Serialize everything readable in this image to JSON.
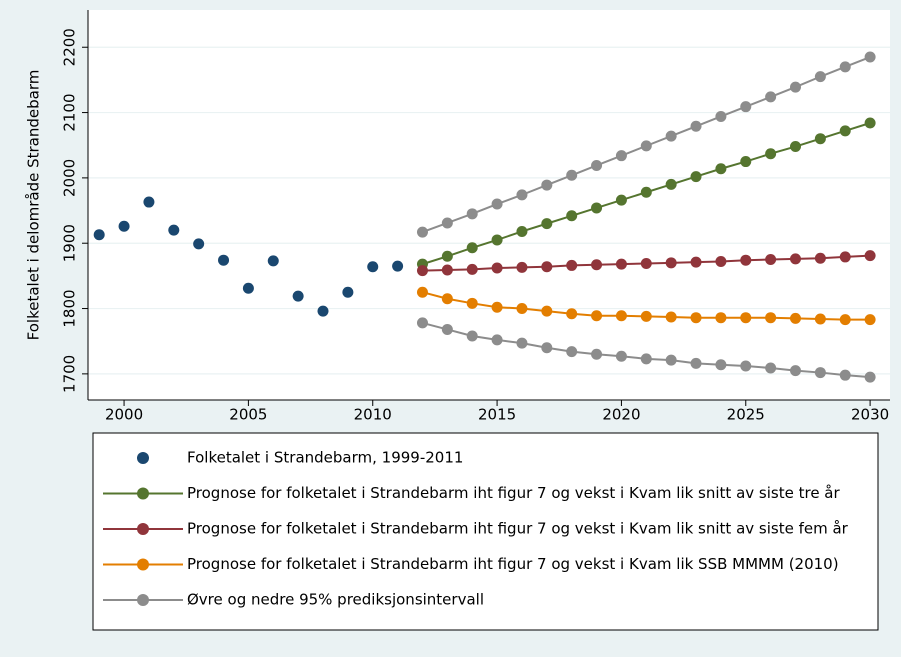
{
  "chart_data": {
    "type": "line",
    "y_label": "Folketalet i delområde Strandebarm",
    "xlim": [
      1998.55,
      2030.8
    ],
    "xticks": [
      2000,
      2005,
      2010,
      2015,
      2020,
      2025,
      2030
    ],
    "ylim": [
      1660,
      2257
    ],
    "yticks": [
      1700,
      1800,
      1900,
      2000,
      2100,
      2200
    ],
    "grid": true,
    "series": [
      {
        "name": "Folketalet i Strandebarm, 1999-2011",
        "color": "#1a476f",
        "style": "markers",
        "x": [
          1999,
          2000,
          2001,
          2002,
          2003,
          2004,
          2005,
          2006,
          2007,
          2008,
          2009,
          2010,
          2011
        ],
        "values": [
          1913,
          1926,
          1963,
          1920,
          1899,
          1874,
          1831,
          1873,
          1819,
          1796,
          1825,
          1864,
          1865
        ]
      },
      {
        "name": "Prognose for folketalet i Strandebarm iht figur 7 og vekst i Kvam lik snitt av siste tre år",
        "color": "#55752f",
        "style": "line-markers",
        "x": [
          2012,
          2013,
          2014,
          2015,
          2016,
          2017,
          2018,
          2019,
          2020,
          2021,
          2022,
          2023,
          2024,
          2025,
          2026,
          2027,
          2028,
          2029,
          2030
        ],
        "values": [
          1868,
          1880,
          1893,
          1905,
          1918,
          1930,
          1942,
          1954,
          1966,
          1978,
          1990,
          2002,
          2014,
          2025,
          2037,
          2048,
          2060,
          2072,
          2084
        ]
      },
      {
        "name": "Prognose for folketalet i Strandebarm iht figur 7 og vekst i Kvam lik snitt av siste fem år",
        "color": "#90353b",
        "style": "line-markers",
        "x": [
          2012,
          2013,
          2014,
          2015,
          2016,
          2017,
          2018,
          2019,
          2020,
          2021,
          2022,
          2023,
          2024,
          2025,
          2026,
          2027,
          2028,
          2029,
          2030
        ],
        "values": [
          1858,
          1859,
          1860,
          1862,
          1863,
          1864,
          1866,
          1867,
          1868,
          1869,
          1870,
          1871,
          1872,
          1874,
          1875,
          1876,
          1877,
          1879,
          1881
        ]
      },
      {
        "name": "Prognose for folketalet i Strandebarm iht figur 7 og vekst i Kvam lik SSB MMMM (2010)",
        "color": "#e37e00",
        "style": "line-markers",
        "x": [
          2012,
          2013,
          2014,
          2015,
          2016,
          2017,
          2018,
          2019,
          2020,
          2021,
          2022,
          2023,
          2024,
          2025,
          2026,
          2027,
          2028,
          2029,
          2030
        ],
        "values": [
          1825,
          1815,
          1808,
          1802,
          1800,
          1796,
          1792,
          1789,
          1789,
          1788,
          1787,
          1786,
          1786,
          1786,
          1786,
          1785,
          1784,
          1783,
          1783
        ]
      },
      {
        "name": "Øvre og nedre 95% prediksjonsintervall",
        "color": "#8c8c8c",
        "style": "line-markers",
        "x": [
          2012,
          2013,
          2014,
          2015,
          2016,
          2017,
          2018,
          2019,
          2020,
          2021,
          2022,
          2023,
          2024,
          2025,
          2026,
          2027,
          2028,
          2029,
          2030
        ],
        "upper": [
          1917,
          1931,
          1945,
          1960,
          1974,
          1989,
          2004,
          2019,
          2034,
          2049,
          2064,
          2079,
          2094,
          2109,
          2124,
          2139,
          2155,
          2170,
          2185
        ],
        "lower": [
          1778,
          1768,
          1758,
          1752,
          1747,
          1740,
          1734,
          1730,
          1727,
          1723,
          1721,
          1716,
          1714,
          1712,
          1709,
          1705,
          1702,
          1698,
          1695
        ]
      }
    ]
  }
}
